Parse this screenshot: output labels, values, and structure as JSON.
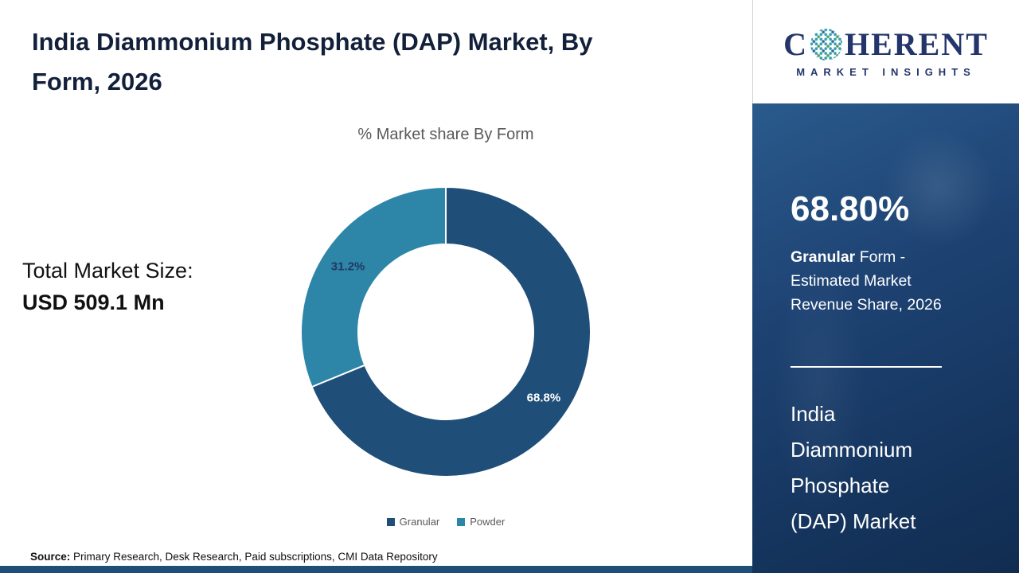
{
  "header": {
    "title": "India Diammonium Phosphate (DAP) Market, By Form, 2026"
  },
  "logo": {
    "c": "C",
    "rest": "HERENT",
    "tagline": "MARKET INSIGHTS"
  },
  "left": {
    "total_label": "Total Market Size:",
    "total_value": "USD 509.1 Mn"
  },
  "chart_data": {
    "type": "pie",
    "subtype": "donut",
    "title": "% Market share By Form",
    "categories": [
      "Granular",
      "Powder"
    ],
    "values": [
      68.8,
      31.2
    ],
    "labels": [
      "68.8%",
      "31.2%"
    ],
    "colors": [
      "#1f4e79",
      "#2d86a8"
    ],
    "label_colors": [
      "#ffffff",
      "#1f3864"
    ],
    "legend_position": "bottom"
  },
  "sidebar": {
    "stat_value": "68.80%",
    "stat_bold": "Granular",
    "stat_rest": " Form - Estimated Market Revenue Share, 2026",
    "market_name": "India Diammonium Phosphate (DAP) Market",
    "accent_color": "#1d4272"
  },
  "footer": {
    "source_label": "Source:",
    "source_text": " Primary Research, Desk Research, Paid subscriptions, CMI Data Repository"
  }
}
